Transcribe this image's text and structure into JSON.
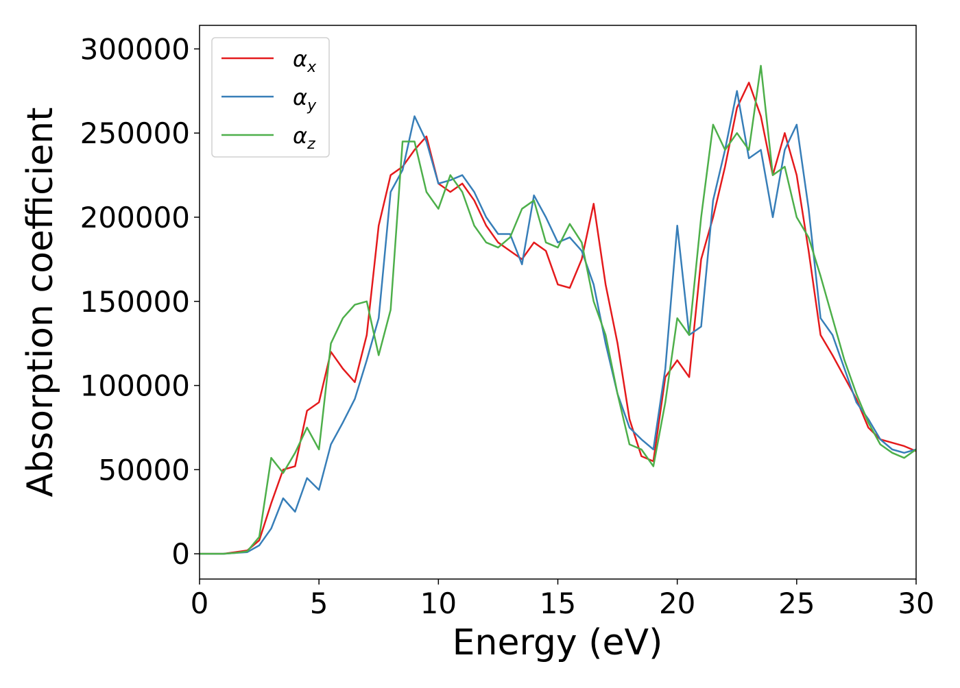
{
  "chart_data": {
    "type": "line",
    "xlabel": "Energy (eV)",
    "ylabel": "Absorption coefficient",
    "xlim": [
      0,
      30
    ],
    "ylim": [
      -15000,
      314000
    ],
    "xticks": [
      0,
      5,
      10,
      15,
      20,
      25,
      30
    ],
    "yticks": [
      0,
      50000,
      100000,
      150000,
      200000,
      250000,
      300000
    ],
    "grid": false,
    "legend": "upper left",
    "x": [
      0,
      0.5,
      1,
      1.5,
      2,
      2.5,
      3,
      3.5,
      4,
      4.5,
      5,
      5.5,
      6,
      6.5,
      7,
      7.5,
      8,
      8.5,
      9,
      9.5,
      10,
      10.5,
      11,
      11.5,
      12,
      12.5,
      13,
      13.5,
      14,
      14.5,
      15,
      15.5,
      16,
      16.5,
      17,
      17.5,
      18,
      18.5,
      19,
      19.5,
      20,
      20.5,
      21,
      21.5,
      22,
      22.5,
      23,
      23.5,
      24,
      24.5,
      25,
      25.5,
      26,
      26.5,
      27,
      27.5,
      28,
      28.5,
      29,
      29.5,
      30
    ],
    "series": [
      {
        "name": "αx",
        "color": "#e41a1c",
        "values": [
          0,
          0,
          0,
          1000,
          2000,
          8000,
          30000,
          50000,
          52000,
          85000,
          90000,
          120000,
          110000,
          102000,
          130000,
          195000,
          225000,
          230000,
          240000,
          248000,
          220000,
          215000,
          220000,
          210000,
          195000,
          185000,
          180000,
          175000,
          185000,
          180000,
          160000,
          158000,
          175000,
          208000,
          160000,
          125000,
          80000,
          58000,
          55000,
          105000,
          115000,
          105000,
          175000,
          200000,
          230000,
          265000,
          280000,
          260000,
          225000,
          250000,
          225000,
          180000,
          130000,
          118000,
          105000,
          92000,
          75000,
          68000,
          66000,
          64000,
          61000
        ]
      },
      {
        "name": "αy",
        "color": "#377eb8",
        "values": [
          0,
          0,
          0,
          500,
          1000,
          5000,
          15000,
          33000,
          25000,
          45000,
          38000,
          65000,
          78000,
          92000,
          115000,
          140000,
          215000,
          228000,
          260000,
          245000,
          220000,
          222000,
          225000,
          215000,
          200000,
          190000,
          190000,
          172000,
          213000,
          200000,
          185000,
          188000,
          180000,
          160000,
          125000,
          95000,
          75000,
          68000,
          62000,
          110000,
          195000,
          130000,
          135000,
          210000,
          240000,
          275000,
          235000,
          240000,
          200000,
          240000,
          255000,
          205000,
          140000,
          130000,
          110000,
          90000,
          80000,
          68000,
          62000,
          60000,
          62000
        ]
      },
      {
        "name": "αz",
        "color": "#4daf4a",
        "values": [
          0,
          0,
          0,
          500,
          1500,
          10000,
          57000,
          48000,
          60000,
          75000,
          62000,
          125000,
          140000,
          148000,
          150000,
          118000,
          145000,
          245000,
          245000,
          215000,
          205000,
          225000,
          215000,
          195000,
          185000,
          182000,
          188000,
          205000,
          210000,
          185000,
          182000,
          196000,
          185000,
          150000,
          130000,
          95000,
          65000,
          62000,
          52000,
          90000,
          140000,
          130000,
          200000,
          255000,
          240000,
          250000,
          240000,
          290000,
          225000,
          230000,
          200000,
          188000,
          165000,
          140000,
          115000,
          95000,
          78000,
          65000,
          60000,
          57000,
          62000
        ]
      }
    ]
  }
}
